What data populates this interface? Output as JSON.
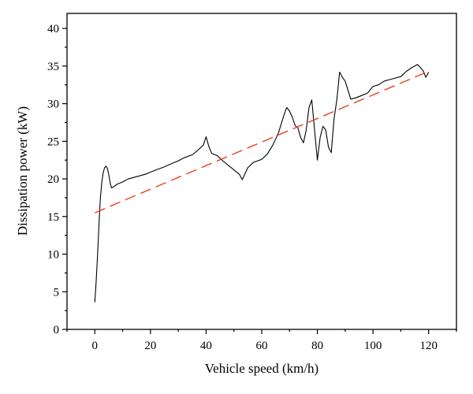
{
  "chart_data": {
    "type": "line",
    "title": "",
    "xlabel": "Vehicle speed (km/h)",
    "ylabel": "Dissipation power (kW)",
    "xlim": [
      -10,
      130
    ],
    "ylim": [
      0,
      42
    ],
    "xticks": [
      0,
      20,
      40,
      60,
      80,
      100,
      120
    ],
    "yticks": [
      0,
      5,
      10,
      15,
      20,
      25,
      30,
      35,
      40
    ],
    "grid": false,
    "series": [
      {
        "kind": "measured",
        "color": "#000000",
        "x": [
          0,
          0.5,
          1,
          1.5,
          2,
          2.5,
          3,
          3.5,
          4,
          4.5,
          5,
          5.5,
          6,
          7,
          8,
          10,
          12,
          15,
          18,
          20,
          22,
          25,
          28,
          30,
          32,
          35,
          37,
          39,
          40,
          41,
          42,
          44,
          46,
          48,
          50,
          52,
          53,
          55,
          57,
          60,
          62,
          64,
          66,
          68,
          69,
          70,
          71,
          72,
          73,
          74,
          75,
          76,
          77,
          78,
          79,
          80,
          81,
          82,
          83,
          84,
          85,
          86,
          87,
          88,
          89,
          90,
          92,
          94,
          96,
          98,
          100,
          102,
          104,
          106,
          108,
          110,
          112,
          114,
          116,
          118,
          119,
          120
        ],
        "y": [
          3.6,
          6.5,
          10,
          14,
          17.5,
          19.5,
          20.8,
          21.5,
          21.7,
          21.4,
          20.6,
          19.5,
          18.8,
          19,
          19.3,
          19.6,
          20,
          20.3,
          20.6,
          20.9,
          21.2,
          21.6,
          22.1,
          22.4,
          22.8,
          23.2,
          23.8,
          24.5,
          25.6,
          24.3,
          23.4,
          23.1,
          22.4,
          21.8,
          21.2,
          20.6,
          19.9,
          21.5,
          22.2,
          22.6,
          23.3,
          24.5,
          26.1,
          28.5,
          29.5,
          29,
          28.2,
          27.1,
          26.8,
          25.5,
          24.8,
          26.5,
          29.5,
          30.5,
          26.5,
          22.5,
          25.5,
          27,
          26.5,
          24.2,
          23.5,
          28,
          30.5,
          34.2,
          33.5,
          33,
          30.6,
          30.8,
          31.1,
          31.4,
          32.3,
          32.5,
          33,
          33.2,
          33.4,
          33.6,
          34.3,
          34.8,
          35.2,
          34.4,
          33.5,
          34.2
        ]
      },
      {
        "kind": "linear-fit",
        "color": "#e8401c",
        "x": [
          0,
          120
        ],
        "y": [
          15.5,
          34.3
        ]
      }
    ]
  }
}
